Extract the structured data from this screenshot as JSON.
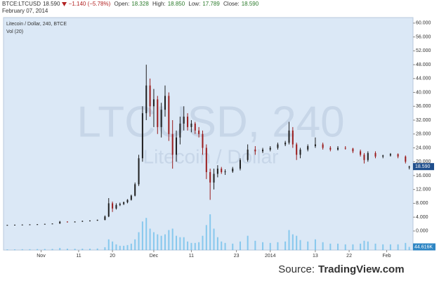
{
  "header": {
    "symbol": "BTCE:LTCUSD",
    "last": "18.590",
    "change": "−1.140 (−5.78%)",
    "open_label": "Open:",
    "open": "18.328",
    "high_label": "High:",
    "high": "18.850",
    "low_label": "Low:",
    "low": "17.789",
    "close_label": "Close:",
    "close": "18.590",
    "date": "February 07, 2014"
  },
  "chart_data": {
    "type": "candlestick",
    "title": "Litecoin / Dollar, 240, BTCE",
    "volume_title": "Vol (20)",
    "watermark": "LTCUSD, 240",
    "watermark_subtitle": "Litecoin / Dollar",
    "x": [
      22,
      24,
      26,
      28,
      30,
      32,
      34,
      36,
      38,
      40,
      42,
      44,
      46,
      48,
      49,
      50,
      51,
      52,
      53,
      54,
      55,
      56,
      57,
      58,
      59,
      60,
      61,
      62,
      63,
      64,
      65,
      66,
      67,
      68,
      69,
      70,
      71,
      72,
      73,
      74,
      75,
      76,
      77,
      78,
      79,
      80,
      82,
      84,
      86,
      88,
      90,
      92,
      94,
      96,
      97,
      98,
      99,
      100,
      102,
      104,
      106,
      108,
      110,
      112,
      114,
      116,
      117,
      118,
      120,
      122,
      124,
      126,
      128,
      129
    ],
    "open": [
      1.7,
      1.75,
      1.8,
      1.85,
      1.9,
      1.95,
      2.05,
      2.15,
      2.7,
      2.6,
      2.7,
      2.9,
      3.0,
      3.2,
      4.2,
      8.0,
      6.5,
      7.5,
      7.8,
      8.3,
      9.0,
      10.2,
      13.5,
      21.0,
      34.0,
      42.0,
      36.0,
      38.0,
      30.0,
      35.0,
      39.0,
      28.0,
      22.0,
      27.0,
      31.0,
      33.0,
      30.0,
      31.0,
      29.0,
      28.0,
      24.0,
      17.0,
      14.0,
      16.5,
      18.0,
      17.0,
      17.2,
      18.0,
      20.5,
      23.5,
      23.0,
      23.5,
      24.0,
      25.0,
      25.5,
      29.0,
      25.0,
      22.0,
      23.5,
      24.5,
      25.0,
      24.0,
      23.5,
      24.0,
      23.8,
      23.0,
      22.0,
      20.5,
      22.5,
      21.5,
      21.8,
      22.2,
      21.5,
      18.328
    ],
    "high": [
      1.8,
      1.85,
      1.9,
      1.95,
      2.0,
      2.1,
      2.2,
      2.9,
      2.8,
      2.8,
      3.0,
      3.1,
      3.3,
      4.5,
      9.5,
      8.5,
      8.0,
      8.2,
      8.5,
      9.2,
      10.5,
      14.0,
      22.0,
      36.0,
      48.0,
      44.0,
      41.0,
      39.0,
      37.0,
      42.0,
      40.0,
      32.0,
      29.0,
      33.0,
      36.0,
      34.0,
      32.0,
      31.5,
      30.0,
      29.0,
      25.0,
      18.0,
      18.0,
      19.0,
      18.5,
      17.8,
      18.5,
      21.0,
      25.0,
      24.5,
      24.0,
      24.5,
      25.5,
      26.0,
      31.5,
      30.0,
      25.5,
      24.0,
      25.0,
      27.0,
      25.5,
      24.5,
      24.5,
      24.5,
      24.0,
      23.5,
      22.5,
      23.0,
      23.0,
      22.0,
      22.5,
      22.4,
      21.8,
      18.85
    ],
    "low": [
      1.65,
      1.7,
      1.75,
      1.8,
      1.85,
      1.9,
      2.0,
      2.1,
      2.5,
      2.55,
      2.65,
      2.85,
      2.95,
      3.1,
      4.0,
      5.5,
      6.2,
      7.2,
      7.5,
      8.0,
      8.8,
      10.0,
      13.0,
      20.0,
      32.0,
      33.0,
      30.0,
      28.0,
      27.0,
      33.0,
      26.0,
      18.0,
      20.0,
      25.0,
      29.0,
      29.0,
      28.5,
      28.0,
      27.0,
      22.0,
      15.0,
      9.0,
      12.0,
      15.5,
      16.5,
      16.2,
      16.8,
      17.5,
      20.0,
      22.0,
      22.5,
      23.0,
      23.5,
      24.5,
      25.0,
      24.0,
      20.5,
      21.0,
      23.0,
      24.0,
      23.5,
      23.0,
      23.2,
      23.5,
      22.5,
      21.5,
      19.5,
      20.0,
      21.0,
      21.0,
      21.5,
      21.0,
      19.5,
      17.789
    ],
    "close": [
      1.75,
      1.8,
      1.85,
      1.9,
      1.95,
      2.05,
      2.15,
      2.7,
      2.6,
      2.7,
      2.9,
      3.0,
      3.2,
      4.2,
      8.0,
      6.5,
      7.5,
      7.8,
      8.3,
      9.0,
      10.2,
      13.5,
      21.0,
      34.0,
      42.0,
      36.0,
      38.0,
      30.0,
      35.0,
      39.0,
      28.0,
      22.0,
      27.0,
      31.0,
      33.0,
      30.0,
      31.0,
      29.0,
      28.0,
      24.0,
      17.0,
      14.0,
      16.5,
      18.0,
      17.0,
      17.2,
      18.0,
      20.5,
      23.5,
      23.0,
      23.5,
      24.0,
      25.0,
      25.5,
      29.0,
      25.0,
      22.0,
      23.5,
      24.5,
      25.0,
      24.0,
      23.5,
      24.0,
      23.8,
      23.0,
      22.0,
      20.5,
      22.5,
      21.5,
      21.8,
      22.2,
      21.5,
      20.0,
      18.59
    ],
    "volume": [
      10,
      10,
      12,
      12,
      14,
      15,
      16,
      30,
      20,
      18,
      20,
      20,
      22,
      40,
      150,
      120,
      80,
      60,
      60,
      70,
      90,
      150,
      250,
      400,
      450,
      300,
      250,
      220,
      200,
      220,
      280,
      300,
      200,
      180,
      180,
      120,
      100,
      100,
      110,
      200,
      350,
      500,
      300,
      180,
      120,
      100,
      90,
      120,
      200,
      130,
      110,
      100,
      110,
      120,
      280,
      220,
      200,
      140,
      120,
      150,
      110,
      90,
      90,
      80,
      80,
      90,
      130,
      120,
      90,
      80,
      80,
      80,
      100,
      44.616
    ],
    "up_color": "#1e1e1e",
    "down_color": "#9b1c1c",
    "volume_color": "#4fb3e8",
    "price_label": {
      "value": 18.59,
      "label": "18.590"
    },
    "volume_label": {
      "value": 44.616,
      "label": "44.616K"
    },
    "xlim": [
      21,
      130
    ],
    "xticks": [
      {
        "value": 31,
        "label": "Nov"
      },
      {
        "value": 41,
        "label": "11"
      },
      {
        "value": 50,
        "label": "20"
      },
      {
        "value": 61,
        "label": "Dec"
      },
      {
        "value": 71,
        "label": "11"
      },
      {
        "value": 83,
        "label": "23"
      },
      {
        "value": 92,
        "label": "2014"
      },
      {
        "value": 104,
        "label": "13"
      },
      {
        "value": 113,
        "label": "22"
      },
      {
        "value": 123,
        "label": "Feb"
      }
    ],
    "ylim": [
      -5.5,
      61.6
    ],
    "yticks": [
      {
        "value": 0,
        "label": "0.000"
      },
      {
        "value": 4,
        "label": "4.000"
      },
      {
        "value": 8,
        "label": "8.000"
      },
      {
        "value": 12,
        "label": "12.000"
      },
      {
        "value": 16,
        "label": "16.000"
      },
      {
        "value": 20,
        "label": "20.000"
      },
      {
        "value": 24,
        "label": "24.000"
      },
      {
        "value": 28,
        "label": "28.000"
      },
      {
        "value": 32,
        "label": "32.000"
      },
      {
        "value": 36,
        "label": "36.000"
      },
      {
        "value": 40,
        "label": "40.000"
      },
      {
        "value": 44,
        "label": "44.000"
      },
      {
        "value": 48,
        "label": "48.000"
      },
      {
        "value": 52,
        "label": "52.000"
      },
      {
        "value": 56,
        "label": "56.000"
      },
      {
        "value": 60,
        "label": "60.000"
      }
    ],
    "volume_lim": [
      0,
      550
    ],
    "grid": false,
    "source_label": "Source:",
    "source_name": "TradingView.com"
  }
}
